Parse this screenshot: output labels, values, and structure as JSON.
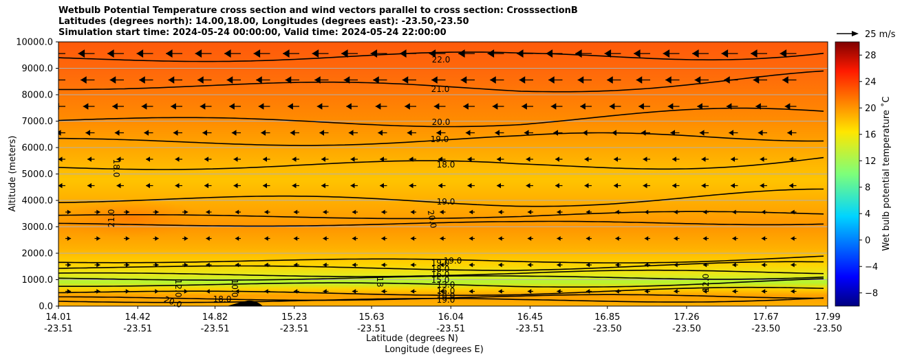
{
  "title_lines": [
    "Wetbulb Potential Temperature cross section and wind vectors parallel to cross section: CrosssectionB",
    "Latitudes (degrees north): 14.00,18.00, Longitudes (degrees east): -23.50,-23.50",
    "Simulation start time: 2024-05-24 00:00:00, Valid time: 2024-05-24 22:00:00"
  ],
  "chart_data": {
    "type": "heatmap",
    "subtype": "filled contour cross section with wind vectors",
    "xlabel": "Latitude (degrees N)",
    "xlabel2": "Longitude (degrees E)",
    "ylabel": "Altitude (meters)",
    "x_ticks_lat": [
      "14.01",
      "14.42",
      "14.82",
      "15.23",
      "15.63",
      "16.04",
      "16.45",
      "16.85",
      "17.26",
      "17.67",
      "17.99"
    ],
    "x_ticks_lon": [
      "-23.51",
      "-23.51",
      "-23.51",
      "-23.51",
      "-23.51",
      "-23.51",
      "-23.51",
      "-23.50",
      "-23.50",
      "-23.50",
      "-23.50"
    ],
    "xlim": [
      14.01,
      17.99
    ],
    "y_ticks": [
      "0.0",
      "1000.0",
      "2000.0",
      "3000.0",
      "4000.0",
      "5000.0",
      "6000.0",
      "7000.0",
      "8000.0",
      "9000.0",
      "10000.0"
    ],
    "ylim": [
      0,
      10000
    ],
    "grid": "horizontal",
    "colorbar": {
      "label": "Wet bulb potential temperature ˚C",
      "ticks": [
        -8,
        -4,
        0,
        4,
        8,
        12,
        16,
        20,
        24,
        28
      ],
      "range": [
        -10,
        30
      ],
      "colormap": "jet"
    },
    "vector_key": {
      "label": "25 m/s",
      "speed": 25
    },
    "contour_levels": [
      {
        "level": 22.0,
        "altitude": 9400
      },
      {
        "level": 21.0,
        "altitude": 8300
      },
      {
        "level": 20.0,
        "altitude": 7000
      },
      {
        "level": 19.0,
        "altitude": 6250
      },
      {
        "level": 18.0,
        "altitude": 5300
      },
      {
        "level": 19.0,
        "altitude": 4000
      },
      {
        "level": 20.0,
        "altitude": 3400
      },
      {
        "level": 21.0,
        "altitude": 3100
      },
      {
        "level": 19.0,
        "altitude": 1700
      },
      {
        "level": 18.0,
        "altitude": 1450
      },
      {
        "level": 16.0,
        "altitude": 1200
      },
      {
        "level": 15.0,
        "altitude": 1050
      },
      {
        "level": 13.0,
        "altitude": 800
      },
      {
        "level": 16.0,
        "altitude": 500
      },
      {
        "level": 18.0,
        "altitude": 300
      },
      {
        "level": 19.0,
        "altitude": 200
      }
    ],
    "contour_labels": [
      "22.0",
      "21.0",
      "20.0",
      "19.0",
      "18.0",
      "19.0",
      "20.0",
      "21.0",
      "18.0",
      "19.0",
      "19.0",
      "18.0",
      "16.0",
      "15.0",
      "13.0",
      "16.0",
      "18.0",
      "19.0",
      "20.0",
      "18.0",
      "12.0",
      "10.0",
      "13",
      "12.0"
    ]
  }
}
